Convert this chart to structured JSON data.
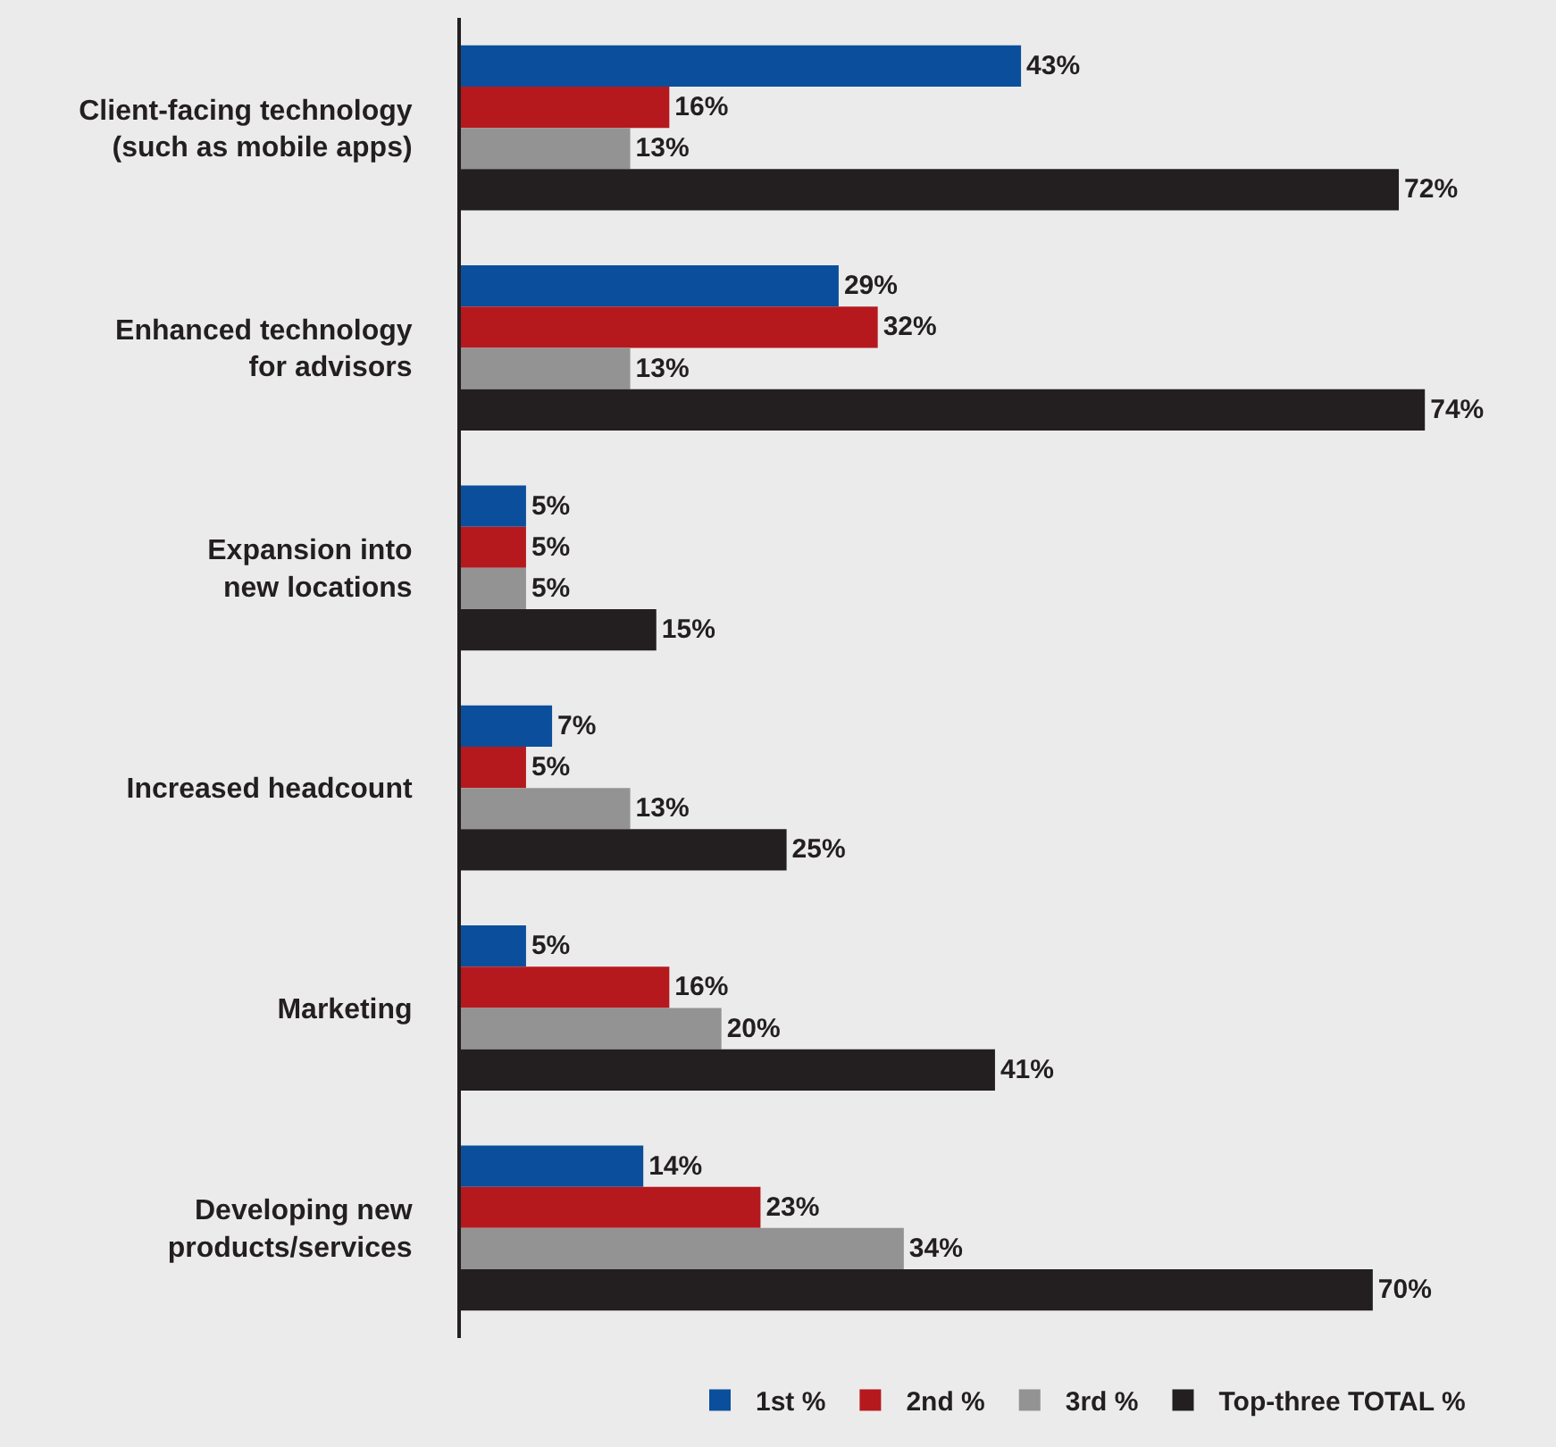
{
  "chart_data": {
    "type": "bar",
    "orientation": "horizontal",
    "categories": [
      "Client-facing technology\n(such as mobile apps)",
      "Enhanced technology\nfor advisors",
      "Expansion into\nnew locations",
      "Increased headcount",
      "Marketing",
      "Developing new\nproducts/services"
    ],
    "series": [
      {
        "name": "1st %",
        "color": "#0b4f9c",
        "values": [
          43,
          29,
          5,
          7,
          5,
          14
        ],
        "value_labels": [
          "43%",
          "29%",
          "5%",
          "7%",
          "5%",
          "14%"
        ]
      },
      {
        "name": "2nd %",
        "color": "#b5191e",
        "values": [
          16,
          32,
          5,
          5,
          16,
          23
        ],
        "value_labels": [
          "16%",
          "32%",
          "5%",
          "5%",
          "16%",
          "23%"
        ]
      },
      {
        "name": "3rd %",
        "color": "#939393",
        "values": [
          13,
          13,
          5,
          13,
          20,
          34
        ],
        "value_labels": [
          "13%",
          "13%",
          "5%",
          "13%",
          "20%",
          "34%"
        ]
      },
      {
        "name": "Top-three TOTAL %",
        "color": "#231f20",
        "values": [
          72,
          74,
          15,
          25,
          41,
          70
        ],
        "value_labels": [
          "72%",
          "74%",
          "15%",
          "25%",
          "41%",
          "70%"
        ]
      }
    ],
    "tick_labels": "y",
    "legend": "bottom right"
  }
}
